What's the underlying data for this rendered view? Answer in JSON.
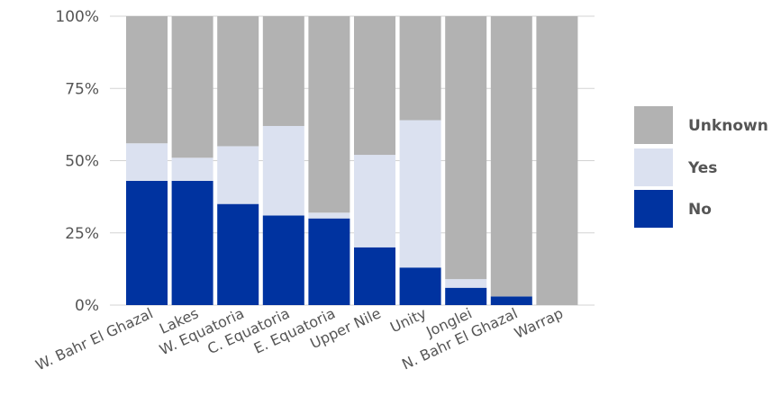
{
  "chart_data": {
    "type": "bar",
    "stacked": true,
    "percent": true,
    "title": "",
    "xlabel": "",
    "ylabel": "",
    "ylim": [
      0,
      100
    ],
    "yticks": [
      "0%",
      "25%",
      "50%",
      "75%",
      "100%"
    ],
    "ytick_values": [
      0,
      25,
      50,
      75,
      100
    ],
    "grid": true,
    "legend_position": "right",
    "categories": [
      "W. Bahr El Ghazal",
      "Lakes",
      "W. Equatoria",
      "C. Equatoria",
      "E. Equatoria",
      "Upper Nile",
      "Unity",
      "Jonglei",
      "N. Bahr El Ghazal",
      "Warrap"
    ],
    "series": [
      {
        "name": "No",
        "color": "#0033a0",
        "values": [
          43,
          43,
          35,
          31,
          30,
          20,
          13,
          6,
          3,
          0
        ]
      },
      {
        "name": "Yes",
        "color": "#dbe1f0",
        "values": [
          13,
          8,
          20,
          31,
          2,
          32,
          51,
          3,
          0,
          0
        ]
      },
      {
        "name": "Unknown",
        "color": "#b2b2b2",
        "values": [
          44,
          49,
          45,
          38,
          68,
          48,
          36,
          91,
          97,
          100
        ]
      }
    ],
    "legend_order": [
      "Unknown",
      "Yes",
      "No"
    ]
  }
}
